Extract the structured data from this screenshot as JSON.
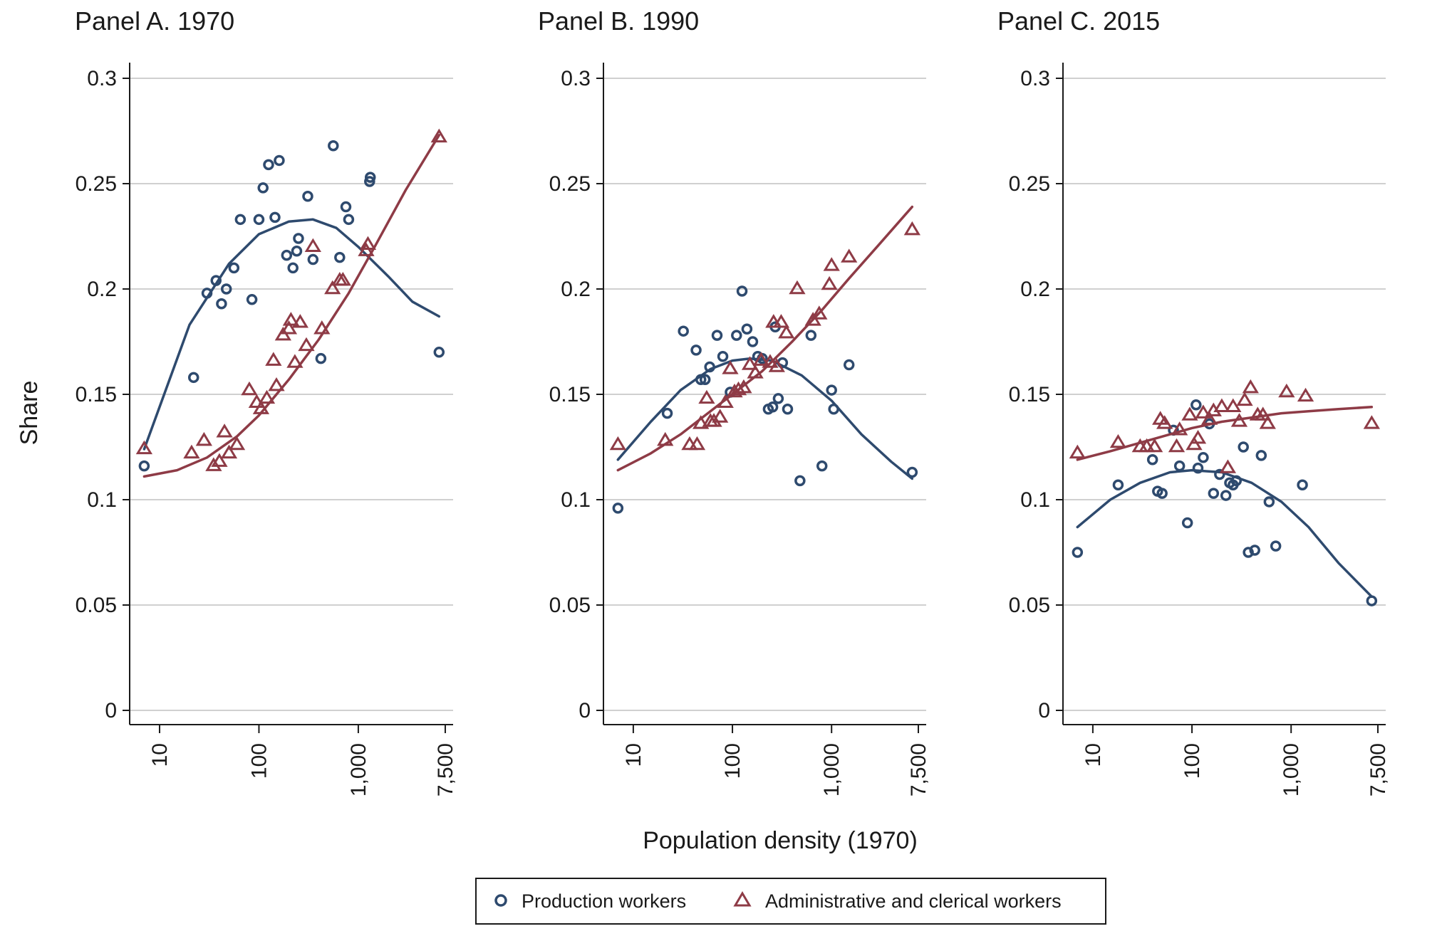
{
  "y_axis_title": "Share",
  "x_axis_title": "Population density (1970)",
  "legend": {
    "items": [
      {
        "label": "Production workers",
        "marker": "circle",
        "color": "#2e4a6e"
      },
      {
        "label": "Administrative and clerical workers",
        "marker": "triangle",
        "color": "#8e3b46"
      }
    ]
  },
  "colors": {
    "production": "#2e4a6e",
    "admin": "#8e3b46",
    "grid": "#d0d0d0"
  },
  "chart_data": [
    {
      "type": "scatter",
      "title": "Panel A. 1970",
      "xscale": "log",
      "xlim": [
        5,
        9000
      ],
      "ylim": [
        0,
        0.3
      ],
      "xticks": [
        10,
        100,
        1000,
        7500
      ],
      "xtick_labels": [
        "10",
        "100",
        "1,000",
        "7,500"
      ],
      "yticks": [
        0,
        0.05,
        0.1,
        0.15,
        0.2,
        0.25,
        0.3
      ],
      "ytick_labels": [
        "0",
        "0.05",
        "0.1",
        "0.15",
        "0.2",
        "0.25",
        "0.3"
      ],
      "series": [
        {
          "name": "Production workers",
          "marker": "circle",
          "points": [
            [
              7,
              0.116
            ],
            [
              22,
              0.158
            ],
            [
              30,
              0.198
            ],
            [
              37,
              0.204
            ],
            [
              42,
              0.193
            ],
            [
              47,
              0.2
            ],
            [
              56,
              0.21
            ],
            [
              65,
              0.233
            ],
            [
              85,
              0.195
            ],
            [
              100,
              0.233
            ],
            [
              110,
              0.248
            ],
            [
              125,
              0.259
            ],
            [
              145,
              0.234
            ],
            [
              160,
              0.261
            ],
            [
              190,
              0.216
            ],
            [
              220,
              0.21
            ],
            [
              240,
              0.218
            ],
            [
              250,
              0.224
            ],
            [
              310,
              0.244
            ],
            [
              350,
              0.214
            ],
            [
              420,
              0.167
            ],
            [
              560,
              0.268
            ],
            [
              650,
              0.215
            ],
            [
              750,
              0.239
            ],
            [
              800,
              0.233
            ],
            [
              1300,
              0.251
            ],
            [
              1320,
              0.253
            ],
            [
              6500,
              0.17
            ]
          ],
          "fit": [
            [
              7,
              0.124
            ],
            [
              20,
              0.183
            ],
            [
              50,
              0.212
            ],
            [
              100,
              0.226
            ],
            [
              200,
              0.232
            ],
            [
              350,
              0.233
            ],
            [
              600,
              0.229
            ],
            [
              1000,
              0.22
            ],
            [
              2000,
              0.206
            ],
            [
              3500,
              0.194
            ],
            [
              6500,
              0.187
            ]
          ]
        },
        {
          "name": "Administrative and clerical workers",
          "marker": "triangle",
          "points": [
            [
              7,
              0.124
            ],
            [
              21,
              0.122
            ],
            [
              28,
              0.128
            ],
            [
              35,
              0.116
            ],
            [
              40,
              0.118
            ],
            [
              45,
              0.132
            ],
            [
              50,
              0.122
            ],
            [
              60,
              0.126
            ],
            [
              80,
              0.152
            ],
            [
              95,
              0.146
            ],
            [
              105,
              0.143
            ],
            [
              120,
              0.148
            ],
            [
              140,
              0.166
            ],
            [
              150,
              0.154
            ],
            [
              175,
              0.178
            ],
            [
              200,
              0.181
            ],
            [
              210,
              0.185
            ],
            [
              230,
              0.165
            ],
            [
              260,
              0.184
            ],
            [
              300,
              0.173
            ],
            [
              350,
              0.22
            ],
            [
              430,
              0.181
            ],
            [
              550,
              0.2
            ],
            [
              650,
              0.204
            ],
            [
              700,
              0.204
            ],
            [
              1200,
              0.218
            ],
            [
              1250,
              0.221
            ],
            [
              6500,
              0.272
            ]
          ],
          "fit": [
            [
              7,
              0.111
            ],
            [
              15,
              0.114
            ],
            [
              30,
              0.12
            ],
            [
              60,
              0.13
            ],
            [
              100,
              0.14
            ],
            [
              200,
              0.157
            ],
            [
              400,
              0.176
            ],
            [
              800,
              0.198
            ],
            [
              1500,
              0.221
            ],
            [
              3000,
              0.247
            ],
            [
              6500,
              0.273
            ]
          ]
        }
      ]
    },
    {
      "type": "scatter",
      "title": "Panel B. 1990",
      "xscale": "log",
      "xlim": [
        5,
        9000
      ],
      "ylim": [
        0,
        0.3
      ],
      "xticks": [
        10,
        100,
        1000,
        7500
      ],
      "xtick_labels": [
        "10",
        "100",
        "1,000",
        "7,500"
      ],
      "yticks": [
        0,
        0.05,
        0.1,
        0.15,
        0.2,
        0.25,
        0.3
      ],
      "ytick_labels": [
        "0",
        "0.05",
        "0.1",
        "0.15",
        "0.2",
        "0.25",
        "0.3"
      ],
      "series": [
        {
          "name": "Production workers",
          "marker": "circle",
          "points": [
            [
              7,
              0.096
            ],
            [
              22,
              0.141
            ],
            [
              32,
              0.18
            ],
            [
              43,
              0.171
            ],
            [
              48,
              0.157
            ],
            [
              53,
              0.157
            ],
            [
              59,
              0.163
            ],
            [
              70,
              0.178
            ],
            [
              80,
              0.168
            ],
            [
              95,
              0.151
            ],
            [
              110,
              0.178
            ],
            [
              125,
              0.199
            ],
            [
              140,
              0.181
            ],
            [
              160,
              0.175
            ],
            [
              180,
              0.168
            ],
            [
              200,
              0.167
            ],
            [
              230,
              0.143
            ],
            [
              255,
              0.144
            ],
            [
              270,
              0.182
            ],
            [
              290,
              0.148
            ],
            [
              320,
              0.165
            ],
            [
              360,
              0.143
            ],
            [
              480,
              0.109
            ],
            [
              620,
              0.178
            ],
            [
              800,
              0.116
            ],
            [
              1000,
              0.152
            ],
            [
              1050,
              0.143
            ],
            [
              1500,
              0.164
            ],
            [
              6500,
              0.113
            ]
          ],
          "fit": [
            [
              7,
              0.119
            ],
            [
              15,
              0.137
            ],
            [
              30,
              0.152
            ],
            [
              60,
              0.162
            ],
            [
              100,
              0.166
            ],
            [
              150,
              0.167
            ],
            [
              250,
              0.166
            ],
            [
              500,
              0.159
            ],
            [
              1000,
              0.147
            ],
            [
              2000,
              0.131
            ],
            [
              4000,
              0.118
            ],
            [
              6500,
              0.11
            ]
          ]
        },
        {
          "name": "Administrative and clerical workers",
          "marker": "triangle",
          "points": [
            [
              7,
              0.126
            ],
            [
              21,
              0.128
            ],
            [
              37,
              0.126
            ],
            [
              44,
              0.126
            ],
            [
              48,
              0.136
            ],
            [
              55,
              0.148
            ],
            [
              60,
              0.137
            ],
            [
              65,
              0.137
            ],
            [
              75,
              0.139
            ],
            [
              85,
              0.146
            ],
            [
              95,
              0.162
            ],
            [
              105,
              0.151
            ],
            [
              115,
              0.152
            ],
            [
              130,
              0.153
            ],
            [
              150,
              0.164
            ],
            [
              170,
              0.16
            ],
            [
              195,
              0.166
            ],
            [
              240,
              0.165
            ],
            [
              260,
              0.184
            ],
            [
              280,
              0.163
            ],
            [
              310,
              0.184
            ],
            [
              350,
              0.179
            ],
            [
              450,
              0.2
            ],
            [
              650,
              0.185
            ],
            [
              750,
              0.188
            ],
            [
              950,
              0.202
            ],
            [
              1000,
              0.211
            ],
            [
              1500,
              0.215
            ],
            [
              6500,
              0.228
            ]
          ],
          "fit": [
            [
              7,
              0.114
            ],
            [
              15,
              0.122
            ],
            [
              30,
              0.131
            ],
            [
              60,
              0.142
            ],
            [
              100,
              0.15
            ],
            [
              200,
              0.161
            ],
            [
              400,
              0.175
            ],
            [
              800,
              0.19
            ],
            [
              1500,
              0.205
            ],
            [
              3000,
              0.221
            ],
            [
              6500,
              0.239
            ]
          ]
        }
      ]
    },
    {
      "type": "scatter",
      "title": "Panel C. 2015",
      "xscale": "log",
      "xlim": [
        5,
        9000
      ],
      "ylim": [
        0,
        0.3
      ],
      "xticks": [
        10,
        100,
        1000,
        7500
      ],
      "xtick_labels": [
        "10",
        "100",
        "1,000",
        "7,500"
      ],
      "yticks": [
        0,
        0.05,
        0.1,
        0.15,
        0.2,
        0.25,
        0.3
      ],
      "ytick_labels": [
        "0",
        "0.05",
        "0.1",
        "0.15",
        "0.2",
        "0.25",
        "0.3"
      ],
      "series": [
        {
          "name": "Production workers",
          "marker": "circle",
          "points": [
            [
              7,
              0.075
            ],
            [
              18,
              0.107
            ],
            [
              40,
              0.119
            ],
            [
              45,
              0.104
            ],
            [
              50,
              0.103
            ],
            [
              65,
              0.133
            ],
            [
              75,
              0.116
            ],
            [
              90,
              0.089
            ],
            [
              110,
              0.145
            ],
            [
              115,
              0.115
            ],
            [
              130,
              0.12
            ],
            [
              150,
              0.136
            ],
            [
              165,
              0.103
            ],
            [
              190,
              0.112
            ],
            [
              220,
              0.102
            ],
            [
              240,
              0.108
            ],
            [
              260,
              0.107
            ],
            [
              280,
              0.109
            ],
            [
              330,
              0.125
            ],
            [
              370,
              0.075
            ],
            [
              430,
              0.076
            ],
            [
              500,
              0.121
            ],
            [
              600,
              0.099
            ],
            [
              700,
              0.078
            ],
            [
              1300,
              0.107
            ],
            [
              6500,
              0.052
            ]
          ],
          "fit": [
            [
              7,
              0.087
            ],
            [
              15,
              0.1
            ],
            [
              30,
              0.108
            ],
            [
              60,
              0.113
            ],
            [
              100,
              0.114
            ],
            [
              200,
              0.113
            ],
            [
              400,
              0.108
            ],
            [
              800,
              0.099
            ],
            [
              1500,
              0.087
            ],
            [
              3000,
              0.07
            ],
            [
              6500,
              0.054
            ]
          ]
        },
        {
          "name": "Administrative and clerical workers",
          "marker": "triangle",
          "points": [
            [
              7,
              0.122
            ],
            [
              18,
              0.127
            ],
            [
              30,
              0.125
            ],
            [
              35,
              0.125
            ],
            [
              42,
              0.125
            ],
            [
              48,
              0.138
            ],
            [
              53,
              0.136
            ],
            [
              70,
              0.125
            ],
            [
              75,
              0.133
            ],
            [
              95,
              0.14
            ],
            [
              105,
              0.126
            ],
            [
              115,
              0.129
            ],
            [
              130,
              0.141
            ],
            [
              150,
              0.138
            ],
            [
              165,
              0.142
            ],
            [
              200,
              0.144
            ],
            [
              230,
              0.115
            ],
            [
              260,
              0.144
            ],
            [
              300,
              0.137
            ],
            [
              340,
              0.147
            ],
            [
              390,
              0.153
            ],
            [
              460,
              0.14
            ],
            [
              520,
              0.14
            ],
            [
              580,
              0.136
            ],
            [
              900,
              0.151
            ],
            [
              1400,
              0.149
            ],
            [
              6500,
              0.136
            ]
          ],
          "fit": [
            [
              7,
              0.119
            ],
            [
              15,
              0.123
            ],
            [
              30,
              0.127
            ],
            [
              60,
              0.131
            ],
            [
              100,
              0.134
            ],
            [
              200,
              0.137
            ],
            [
              400,
              0.139
            ],
            [
              800,
              0.141
            ],
            [
              1500,
              0.142
            ],
            [
              3000,
              0.143
            ],
            [
              6500,
              0.144
            ]
          ]
        }
      ]
    }
  ]
}
